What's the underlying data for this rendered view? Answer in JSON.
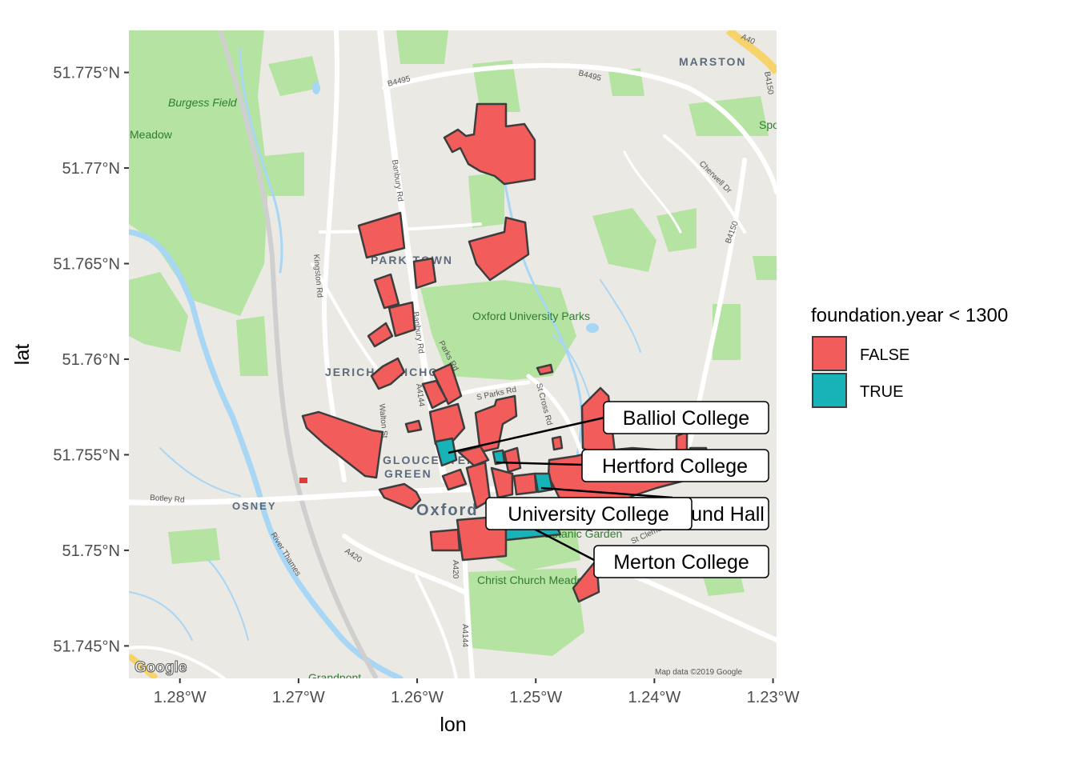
{
  "chart_data": {
    "type": "map",
    "xlabel": "lon",
    "ylabel": "lat",
    "xlim": [
      -1.2843,
      -1.2297
    ],
    "ylim": [
      51.7433,
      51.7772
    ],
    "x_ticks": [
      {
        "value": -1.28,
        "label": "1.28°W"
      },
      {
        "value": -1.27,
        "label": "1.27°W"
      },
      {
        "value": -1.26,
        "label": "1.26°W"
      },
      {
        "value": -1.25,
        "label": "1.25°W"
      },
      {
        "value": -1.24,
        "label": "1.24°W"
      },
      {
        "value": -1.23,
        "label": "1.23°W"
      }
    ],
    "y_ticks": [
      {
        "value": 51.745,
        "label": "51.745°N"
      },
      {
        "value": 51.75,
        "label": "51.75°N"
      },
      {
        "value": 51.755,
        "label": "51.755°N"
      },
      {
        "value": 51.76,
        "label": "51.76°N"
      },
      {
        "value": 51.765,
        "label": "51.765°N"
      },
      {
        "value": 51.77,
        "label": "51.77°N"
      },
      {
        "value": 51.775,
        "label": "51.775°N"
      }
    ],
    "legend": {
      "title": "foundation.year < 1300",
      "position": "right",
      "entries": [
        {
          "label": "FALSE",
          "color": "#F25C5A"
        },
        {
          "label": "TRUE",
          "color": "#18B3B8"
        }
      ]
    },
    "labels": [
      {
        "text": "Balliol College",
        "lon": -1.2577,
        "lat": 51.7549
      },
      {
        "text": "Hertford College",
        "lon": -1.2535,
        "lat": 51.7544
      },
      {
        "text": "St Edmund Hall",
        "lon": -1.2488,
        "lat": 51.7527
      },
      {
        "text": "University College",
        "lon": -1.252,
        "lat": 51.752
      },
      {
        "text": "Merton College",
        "lon": -1.253,
        "lat": 51.7512
      }
    ],
    "basemap": {
      "attribution": "Map data ©2019 Google",
      "logo": "Google",
      "place_labels": [
        "MARSTON",
        "PARK TOWN",
        "JERICHO",
        "JERICHO",
        "GLOUCESTER",
        "GREEN",
        "OSNEY",
        "Oxford"
      ],
      "road_labels": [
        "B4495",
        "B4495",
        "Banbury Rd",
        "Banbury Rd",
        "Kingston Rd",
        "Parks Rd",
        "S Parks Rd",
        "St Cross Rd",
        "Walton St",
        "Botley Rd",
        "A420",
        "A4144",
        "A4144",
        "A40",
        "B4150",
        "B4150",
        "Cherwell Dr",
        "River Thames",
        "St Clement's",
        "A420"
      ],
      "park_labels": [
        "Burgess Field",
        "Meadow",
        "Oxford University Parks",
        "Botanic Garden",
        "Christ Church Meadow",
        "Sports",
        "Grandpont"
      ]
    },
    "colleges_note": "polygons of Oxford colleges filled by whether foundation.year < 1300"
  },
  "colors": {
    "false_fill": "#F25C5A",
    "true_fill": "#18B3B8",
    "outline": "#3d3d3d",
    "land": "#ebe9e4",
    "park": "#b5e3a2",
    "water": "#a8d6f5",
    "road": "#ffffff",
    "major_road": "#f6d36b"
  }
}
